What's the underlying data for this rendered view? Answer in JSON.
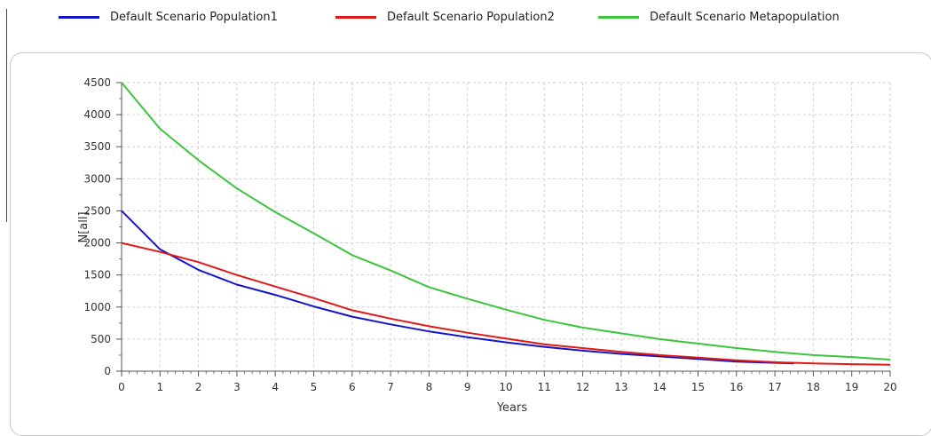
{
  "chart_data": {
    "type": "line",
    "xlabel": "Years",
    "ylabel": "N[all]",
    "xlim": [
      0,
      20
    ],
    "ylim": [
      0,
      4500
    ],
    "x_ticks": [
      "0",
      "1",
      "2",
      "3",
      "4",
      "5",
      "6",
      "7",
      "8",
      "9",
      "10",
      "11",
      "12",
      "13",
      "14",
      "15",
      "16",
      "17",
      "18",
      "19",
      "20"
    ],
    "y_ticks": [
      "0",
      "500",
      "1000",
      "1500",
      "2000",
      "2500",
      "3000",
      "3500",
      "4000",
      "4500"
    ],
    "grid": true,
    "legend_position": "top",
    "series": [
      {
        "name": "Default Scenario Population1",
        "color": "#1515c8",
        "x": [
          0,
          1,
          2,
          3,
          4,
          5,
          6,
          7,
          8,
          9,
          10,
          11,
          12,
          13,
          14,
          15,
          16,
          17,
          17.5
        ],
        "values": [
          2500,
          1900,
          1580,
          1350,
          1190,
          1010,
          850,
          730,
          620,
          530,
          450,
          380,
          320,
          270,
          230,
          190,
          150,
          130,
          120
        ]
      },
      {
        "name": "Default Scenario Population2",
        "color": "#e01818",
        "x": [
          0,
          1,
          2,
          3,
          4,
          5,
          6,
          7,
          8,
          9,
          10,
          11,
          12,
          13,
          14,
          15,
          16,
          17,
          18,
          19,
          20
        ],
        "values": [
          2000,
          1860,
          1700,
          1500,
          1320,
          1140,
          950,
          820,
          700,
          600,
          510,
          420,
          360,
          300,
          250,
          210,
          170,
          140,
          120,
          110,
          100
        ]
      },
      {
        "name": "Default Scenario Metapopulation",
        "color": "#3cc43c",
        "x": [
          0,
          1,
          2,
          3,
          4,
          5,
          6,
          7,
          8,
          9,
          10,
          11,
          12,
          13,
          14,
          15,
          16,
          17,
          18,
          19,
          20
        ],
        "values": [
          4500,
          3780,
          3290,
          2850,
          2480,
          2150,
          1810,
          1570,
          1310,
          1130,
          960,
          800,
          680,
          590,
          500,
          430,
          360,
          300,
          250,
          220,
          180
        ]
      }
    ]
  }
}
